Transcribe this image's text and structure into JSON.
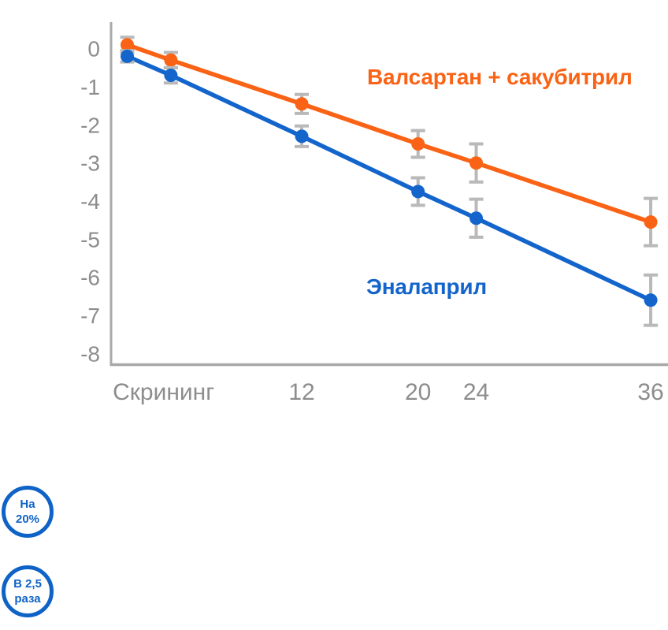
{
  "colors": {
    "orange": "#fa6315",
    "blue": "#1365cb",
    "axis": "#a8a8a8",
    "error_bar": "#b9b9b9",
    "tick_label": "#8d8d8d",
    "callout_blue": "#0f63c6",
    "background": "#ffffff"
  },
  "chart_data": {
    "type": "line",
    "x": [
      0,
      3,
      12,
      20,
      24,
      36
    ],
    "x_tick_labels": [
      {
        "label": "Скрининг",
        "month": 2.5
      },
      {
        "label": "12",
        "month": 12
      },
      {
        "label": "20",
        "month": 20
      },
      {
        "label": "24",
        "month": 24
      },
      {
        "label": "36",
        "month": 36
      }
    ],
    "xlim": [
      0,
      36
    ],
    "ylim": [
      -8,
      0
    ],
    "y_ticks": [
      0,
      -1,
      -2,
      -3,
      -4,
      -5,
      -6,
      -7,
      -8
    ],
    "grid": "off",
    "legend_position": "inline-labels",
    "series": [
      {
        "name": "Валсартан + сакубитрил",
        "color_key": "orange",
        "values": [
          0.1,
          -0.3,
          -1.45,
          -2.5,
          -3.0,
          -4.55
        ],
        "errors": [
          0.2,
          0.2,
          0.25,
          0.35,
          0.5,
          0.62
        ]
      },
      {
        "name": "Эналаприл",
        "color_key": "blue",
        "values": [
          -0.2,
          -0.7,
          -2.3,
          -3.75,
          -4.45,
          -6.6
        ],
        "errors": [
          0.15,
          0.2,
          0.27,
          0.36,
          0.5,
          0.66
        ]
      }
    ]
  },
  "callouts": [
    {
      "line1": "На",
      "line2": "20%"
    },
    {
      "line1": "В 2,5",
      "line2": "раза"
    }
  ]
}
